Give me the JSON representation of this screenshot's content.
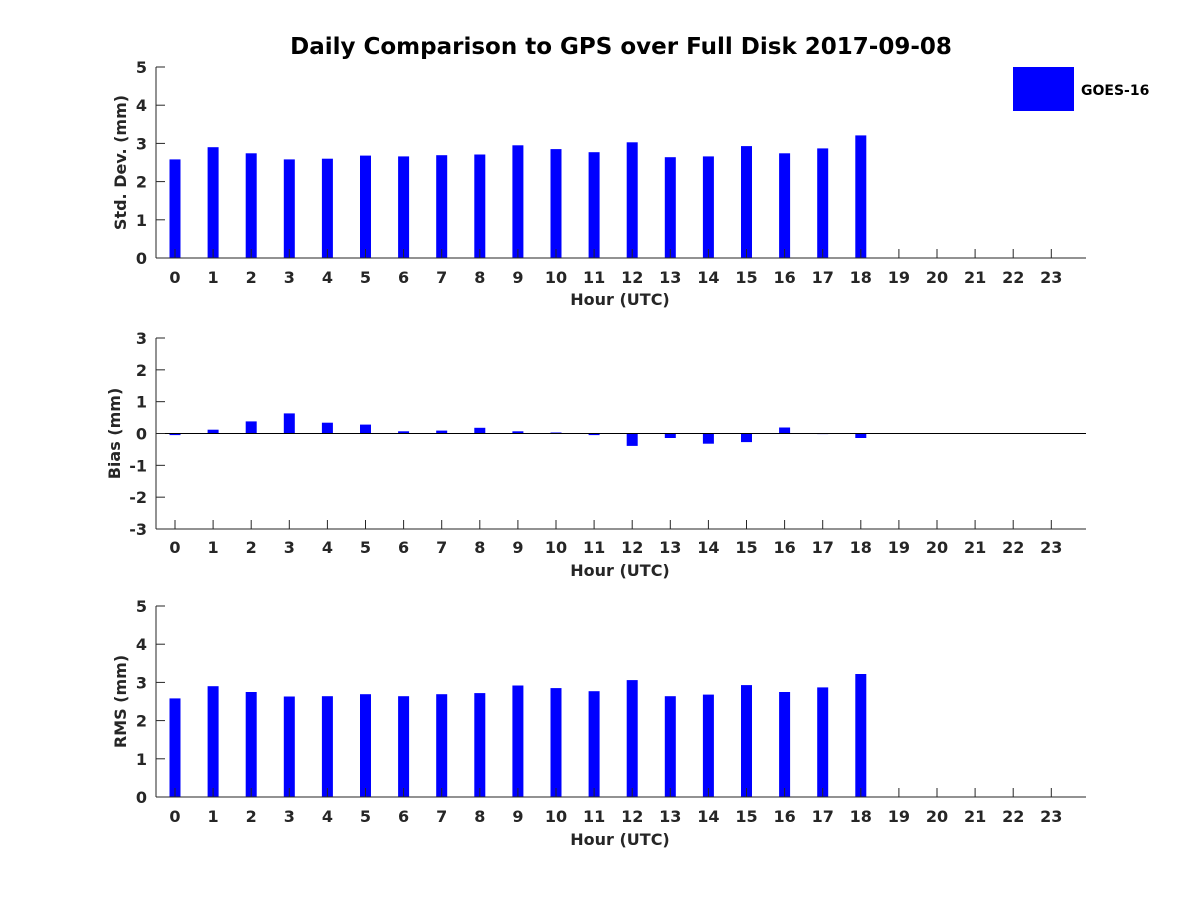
{
  "title": "Daily Comparison to GPS over Full Disk 2017-09-08",
  "colors": {
    "bar": "#0000ff",
    "axis": "#262626"
  },
  "legend": {
    "label": "GOES-16",
    "placement": "top-right"
  },
  "chart_data": [
    {
      "type": "bar",
      "title": "Daily Comparison to GPS over Full Disk 2017-09-08",
      "xlabel": "Hour (UTC)",
      "ylabel": "Std. Dev. (mm)",
      "ylim": [
        0,
        5
      ],
      "yticks": [
        0,
        1,
        2,
        3,
        4,
        5
      ],
      "categories": [
        "0",
        "1",
        "2",
        "3",
        "4",
        "5",
        "6",
        "7",
        "8",
        "9",
        "10",
        "11",
        "12",
        "13",
        "14",
        "15",
        "16",
        "17",
        "18",
        "19",
        "20",
        "21",
        "22",
        "23"
      ],
      "series": [
        {
          "name": "GOES-16",
          "values": [
            2.58,
            2.9,
            2.74,
            2.58,
            2.6,
            2.68,
            2.66,
            2.69,
            2.71,
            2.95,
            2.85,
            2.77,
            3.03,
            2.64,
            2.66,
            2.93,
            2.74,
            2.87,
            3.21,
            null,
            null,
            null,
            null,
            null
          ]
        }
      ]
    },
    {
      "type": "bar",
      "xlabel": "Hour (UTC)",
      "ylabel": "Bias (mm)",
      "ylim": [
        -3,
        3
      ],
      "yticks": [
        -3,
        -2,
        -1,
        0,
        1,
        2,
        3
      ],
      "categories": [
        "0",
        "1",
        "2",
        "3",
        "4",
        "5",
        "6",
        "7",
        "8",
        "9",
        "10",
        "11",
        "12",
        "13",
        "14",
        "15",
        "16",
        "17",
        "18",
        "19",
        "20",
        "21",
        "22",
        "23"
      ],
      "series": [
        {
          "name": "GOES-16",
          "values": [
            -0.05,
            0.12,
            0.38,
            0.63,
            0.34,
            0.28,
            0.07,
            0.09,
            0.18,
            0.07,
            0.03,
            -0.05,
            -0.39,
            -0.14,
            -0.32,
            -0.27,
            0.19,
            0.0,
            -0.14,
            null,
            null,
            null,
            null,
            null
          ]
        }
      ]
    },
    {
      "type": "bar",
      "xlabel": "Hour (UTC)",
      "ylabel": "RMS (mm)",
      "ylim": [
        0,
        5
      ],
      "yticks": [
        0,
        1,
        2,
        3,
        4,
        5
      ],
      "categories": [
        "0",
        "1",
        "2",
        "3",
        "4",
        "5",
        "6",
        "7",
        "8",
        "9",
        "10",
        "11",
        "12",
        "13",
        "14",
        "15",
        "16",
        "17",
        "18",
        "19",
        "20",
        "21",
        "22",
        "23"
      ],
      "series": [
        {
          "name": "GOES-16",
          "values": [
            2.58,
            2.9,
            2.75,
            2.63,
            2.64,
            2.69,
            2.64,
            2.69,
            2.72,
            2.92,
            2.85,
            2.77,
            3.06,
            2.64,
            2.68,
            2.93,
            2.75,
            2.87,
            3.22,
            null,
            null,
            null,
            null,
            null
          ]
        }
      ]
    }
  ]
}
